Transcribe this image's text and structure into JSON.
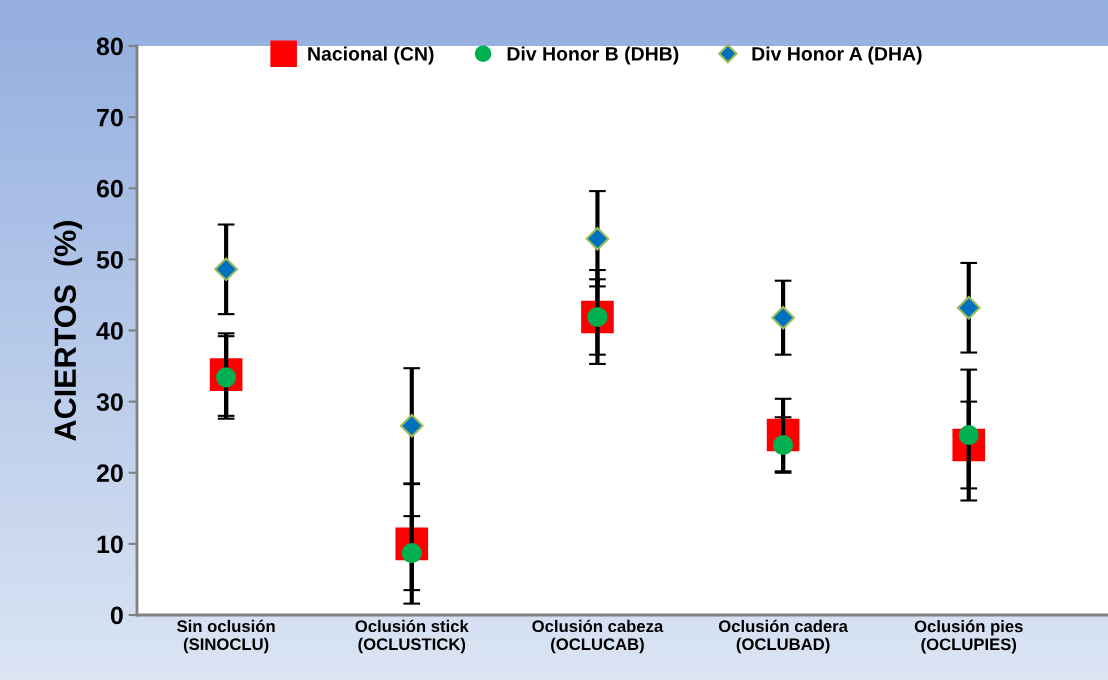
{
  "chart_data": {
    "type": "scatter",
    "ylabel": "ACIERTOS  (%)",
    "categories": [
      "Sin oclusión\n(SINOCLU)",
      "Oclusión stick\n(OCLUSTICK)",
      "Oclusión cabeza\n(OCLUCAB)",
      "Oclusión cadera\n(OCLUBAD)",
      "Oclusión pies\n(OCLUPIES)"
    ],
    "series": [
      {
        "name": "Nacional (CN)",
        "color": "#ff0000",
        "marker": "square",
        "values": [
          33.8,
          10.0,
          41.9,
          25.3,
          23.9
        ],
        "errors": [
          5.8,
          8.4,
          6.6,
          5.1,
          6.1
        ]
      },
      {
        "name": "Div Honor B (DHB)",
        "color": "#00b050",
        "marker": "circle",
        "values": [
          33.4,
          8.7,
          41.9,
          23.9,
          25.3
        ],
        "errors": [
          5.8,
          5.2,
          5.3,
          3.9,
          9.2
        ]
      },
      {
        "name": "Div Honor A (DHA)",
        "color": "#0070c0",
        "marker": "diamond",
        "values": [
          48.6,
          26.6,
          52.9,
          41.8,
          43.2
        ],
        "errors": [
          6.3,
          8.1,
          6.7,
          5.2,
          6.3
        ]
      }
    ],
    "ylim": [
      0,
      80
    ],
    "yticks": [
      0,
      10,
      20,
      30,
      40,
      50,
      60,
      70,
      80
    ],
    "grid": false,
    "legend": "top"
  }
}
